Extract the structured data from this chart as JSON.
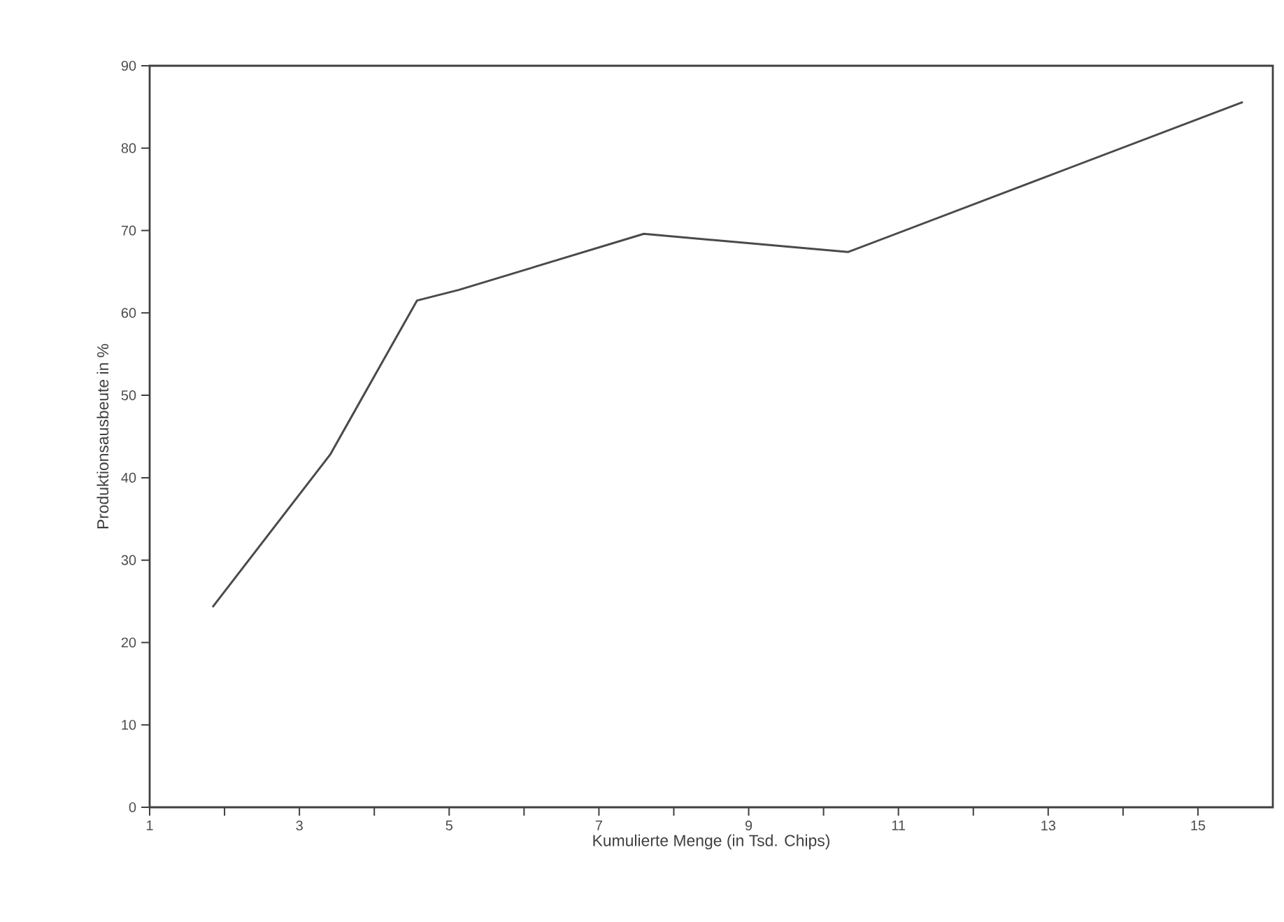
{
  "chart_data": {
    "type": "line",
    "xlabel": "Kumulierte Menge  (in Tsd. Chips)",
    "ylabel": "Produktionsausbeute in %",
    "series": [
      {
        "color": "#4a4a4a",
        "x": [
          1.84,
          3.41,
          4.57,
          5.13,
          7.6,
          10.33,
          15.6
        ],
        "values": [
          24.3,
          42.8,
          61.5,
          62.8,
          69.6,
          67.4,
          85.6
        ]
      }
    ],
    "xlim": [
      1,
      16
    ],
    "ylim": [
      0,
      90
    ],
    "xticks": [
      1,
      {
        "value": 2,
        "label": null
      },
      3,
      {
        "value": 4,
        "label": null
      },
      5,
      {
        "value": 6,
        "label": null
      },
      7,
      {
        "value": 8,
        "label": null
      },
      9,
      {
        "value": 10,
        "label": null
      },
      11,
      {
        "value": 12,
        "label": null
      },
      13,
      {
        "value": 14,
        "label": null
      },
      15
    ],
    "yticks": [
      0,
      10,
      20,
      30,
      40,
      50,
      60,
      70,
      80,
      90
    ],
    "grid": false,
    "marker": "none",
    "line_style": "solid"
  }
}
